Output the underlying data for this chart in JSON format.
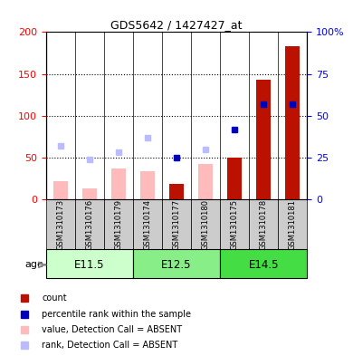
{
  "title": "GDS5642 / 1427427_at",
  "samples": [
    "GSM1310173",
    "GSM1310176",
    "GSM1310179",
    "GSM1310174",
    "GSM1310177",
    "GSM1310180",
    "GSM1310175",
    "GSM1310178",
    "GSM1310181"
  ],
  "age_groups": [
    {
      "label": "E11.5",
      "start": 0,
      "end": 3,
      "color": "#ccffcc"
    },
    {
      "label": "E12.5",
      "start": 3,
      "end": 6,
      "color": "#88ee88"
    },
    {
      "label": "E14.5",
      "start": 6,
      "end": 9,
      "color": "#44dd44"
    }
  ],
  "count_values": [
    0,
    0,
    0,
    0,
    18,
    0,
    50,
    143,
    183
  ],
  "percentile_rank": [
    null,
    null,
    null,
    null,
    25,
    null,
    42,
    57,
    57
  ],
  "absent_value": [
    22,
    13,
    37,
    34,
    null,
    42,
    null,
    null,
    null
  ],
  "absent_rank": [
    32,
    24,
    28,
    37,
    null,
    30,
    null,
    null,
    null
  ],
  "left_ylim": [
    0,
    200
  ],
  "right_ylim": [
    0,
    100
  ],
  "left_yticks": [
    0,
    50,
    100,
    150,
    200
  ],
  "right_yticks": [
    0,
    25,
    50,
    75,
    100
  ],
  "count_color": "#bb1100",
  "percentile_color": "#0000bb",
  "absent_value_color": "#ffbbbb",
  "absent_rank_color": "#bbbbff",
  "bar_width": 0.5
}
